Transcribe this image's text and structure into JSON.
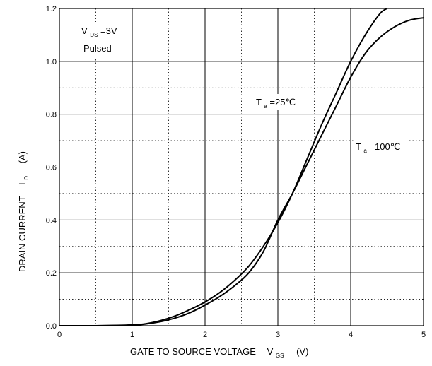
{
  "chart_data": {
    "type": "line",
    "xlabel": {
      "main": "GATE TO SOURCE VOLTAGE",
      "symbol": "V",
      "sub": "GS",
      "unit": "(V)"
    },
    "ylabel": {
      "main": "DRAIN CURRENT",
      "symbol": "I",
      "sub": "D",
      "unit": "(A)"
    },
    "xlim": [
      0,
      5
    ],
    "ylim": [
      0,
      1.2
    ],
    "x_ticks": [
      "0",
      "1",
      "2",
      "3",
      "4",
      "5"
    ],
    "y_ticks": [
      "0.0",
      "0.2",
      "0.4",
      "0.6",
      "0.8",
      "1.0",
      "1.2"
    ],
    "grid": {
      "major": "solid",
      "minor": "dotted"
    },
    "conditions": {
      "vds": {
        "symbol": "V",
        "sub": "DS",
        "value": "=3V"
      },
      "mode": "Pulsed"
    },
    "series": [
      {
        "name": {
          "symbol": "T",
          "sub": "a",
          "value": "=25℃"
        },
        "x": [
          0,
          0.5,
          1.0,
          1.2,
          1.4,
          1.6,
          1.8,
          2.0,
          2.2,
          2.4,
          2.6,
          2.8,
          3.0,
          3.2,
          3.4,
          3.6,
          3.8,
          4.0,
          4.2,
          4.4,
          4.5
        ],
        "y": [
          0,
          0,
          0.003,
          0.008,
          0.02,
          0.038,
          0.062,
          0.09,
          0.125,
          0.17,
          0.225,
          0.3,
          0.39,
          0.5,
          0.63,
          0.76,
          0.88,
          1.0,
          1.1,
          1.18,
          1.2
        ]
      },
      {
        "name": {
          "symbol": "T",
          "sub": "a",
          "value": "=100℃"
        },
        "x": [
          0,
          0.5,
          1.0,
          1.2,
          1.4,
          1.6,
          1.8,
          2.0,
          2.2,
          2.4,
          2.6,
          2.8,
          3.0,
          3.2,
          3.4,
          3.6,
          3.8,
          4.0,
          4.2,
          4.4,
          4.6,
          4.8,
          5.0
        ],
        "y": [
          0,
          0,
          0.002,
          0.007,
          0.016,
          0.03,
          0.05,
          0.078,
          0.11,
          0.15,
          0.2,
          0.28,
          0.4,
          0.5,
          0.61,
          0.72,
          0.83,
          0.94,
          1.03,
          1.09,
          1.13,
          1.155,
          1.165
        ]
      }
    ]
  }
}
